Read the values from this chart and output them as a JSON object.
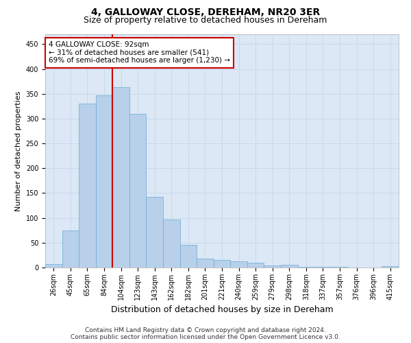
{
  "title": "4, GALLOWAY CLOSE, DEREHAM, NR20 3ER",
  "subtitle": "Size of property relative to detached houses in Dereham",
  "xlabel": "Distribution of detached houses by size in Dereham",
  "ylabel": "Number of detached properties",
  "categories": [
    "26sqm",
    "45sqm",
    "65sqm",
    "84sqm",
    "104sqm",
    "123sqm",
    "143sqm",
    "162sqm",
    "182sqm",
    "201sqm",
    "221sqm",
    "240sqm",
    "259sqm",
    "279sqm",
    "298sqm",
    "318sqm",
    "337sqm",
    "357sqm",
    "376sqm",
    "396sqm",
    "415sqm"
  ],
  "values": [
    7,
    75,
    330,
    347,
    363,
    310,
    143,
    97,
    46,
    18,
    15,
    12,
    10,
    4,
    5,
    2,
    2,
    1,
    0,
    0,
    3
  ],
  "bar_color": "#b8d0ea",
  "bar_edge_color": "#6aaad4",
  "vline_x": 3.5,
  "vline_color": "#cc0000",
  "annotation_text": "4 GALLOWAY CLOSE: 92sqm\n← 31% of detached houses are smaller (541)\n69% of semi-detached houses are larger (1,230) →",
  "annotation_box_color": "#ffffff",
  "annotation_box_edge": "#cc0000",
  "ylim": [
    0,
    470
  ],
  "yticks": [
    0,
    50,
    100,
    150,
    200,
    250,
    300,
    350,
    400,
    450
  ],
  "grid_color": "#c8d8ec",
  "bg_color": "#dce8f5",
  "footer_line1": "Contains HM Land Registry data © Crown copyright and database right 2024.",
  "footer_line2": "Contains public sector information licensed under the Open Government Licence v3.0.",
  "title_fontsize": 10,
  "subtitle_fontsize": 9,
  "xlabel_fontsize": 9,
  "ylabel_fontsize": 8,
  "tick_fontsize": 7,
  "annotation_fontsize": 7.5,
  "footer_fontsize": 6.5
}
